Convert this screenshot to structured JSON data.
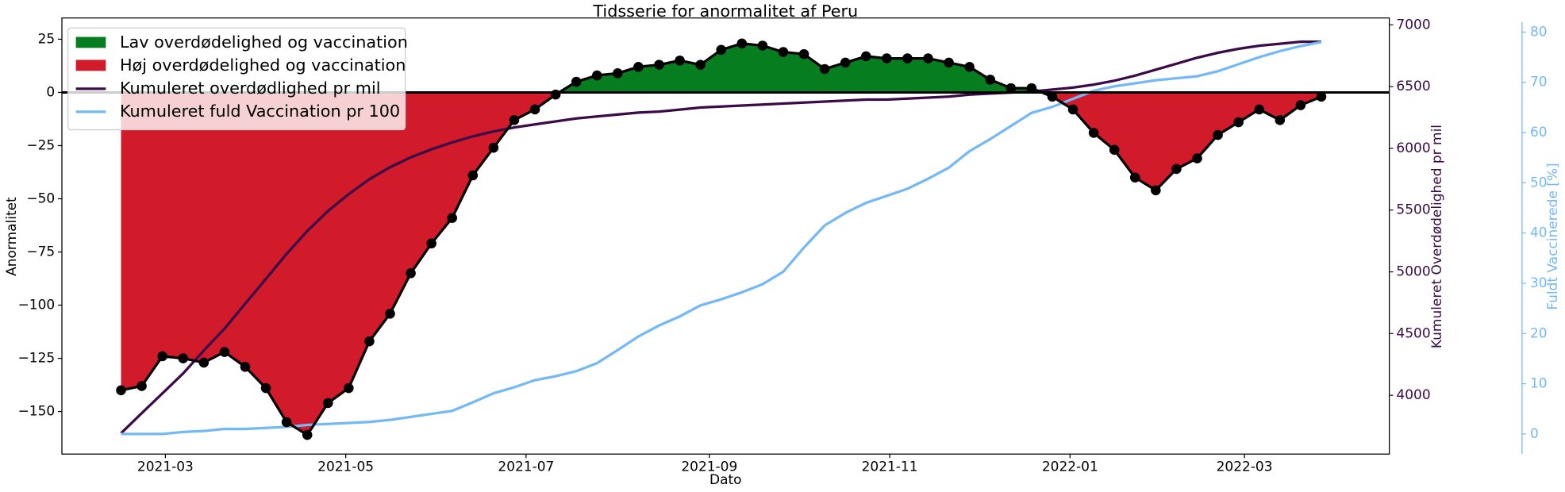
{
  "chart_data": {
    "type": "line",
    "title": "Tidsserie for anormalitet af Peru",
    "xlabel": "Dato",
    "ylabel": "Anormalitet",
    "y2label": "Kumuleret Overdødelighed pr mil",
    "y3label": "Fuldt Vaccinerede [%]",
    "legend": "upper left",
    "x": [
      "2021-02-14",
      "2021-02-21",
      "2021-02-28",
      "2021-03-07",
      "2021-03-14",
      "2021-03-21",
      "2021-03-28",
      "2021-04-04",
      "2021-04-11",
      "2021-04-18",
      "2021-04-25",
      "2021-05-02",
      "2021-05-09",
      "2021-05-16",
      "2021-05-23",
      "2021-05-30",
      "2021-06-06",
      "2021-06-13",
      "2021-06-20",
      "2021-06-27",
      "2021-07-04",
      "2021-07-11",
      "2021-07-18",
      "2021-07-25",
      "2021-08-01",
      "2021-08-08",
      "2021-08-15",
      "2021-08-22",
      "2021-08-29",
      "2021-09-05",
      "2021-09-12",
      "2021-09-19",
      "2021-09-26",
      "2021-10-03",
      "2021-10-10",
      "2021-10-17",
      "2021-10-24",
      "2021-10-31",
      "2021-11-07",
      "2021-11-14",
      "2021-11-21",
      "2021-11-28",
      "2021-12-05",
      "2021-12-12",
      "2021-12-19",
      "2021-12-26",
      "2022-01-02",
      "2022-01-09",
      "2022-01-16",
      "2022-01-23",
      "2022-01-30",
      "2022-02-06",
      "2022-02-13",
      "2022-02-20",
      "2022-02-27",
      "2022-03-06",
      "2022-03-13",
      "2022-03-20",
      "2022-03-27"
    ],
    "anomaly": {
      "color": "#000000",
      "values": [
        -140,
        -138,
        -124,
        -125,
        -127,
        -122,
        -129,
        -139,
        -155,
        -161,
        -146,
        -139,
        -117,
        -104,
        -85,
        -71,
        -59,
        -39,
        -26,
        -13,
        -8,
        -1,
        5,
        8,
        9,
        12,
        13,
        15,
        13,
        20,
        23,
        22,
        19,
        18,
        11,
        14,
        17,
        16,
        16,
        16,
        14,
        12,
        6,
        2,
        2,
        -2,
        -8,
        -19,
        -27,
        -40,
        -46,
        -36,
        -31,
        -20,
        -14,
        -8,
        -13,
        -6,
        -2
      ]
    },
    "fills": [
      {
        "name": "Lav overdødelighed og vaccination",
        "color": "#067d1e"
      },
      {
        "name": "Høj overdødelighed og vaccination",
        "color": "#d11a2a"
      }
    ],
    "series": [
      {
        "name": "Kumuleret overdødlighed pr mil",
        "color": "#3a0b47",
        "axis": "y2",
        "values": [
          3693,
          3855,
          4016,
          4177,
          4363,
          4540,
          4742,
          4943,
          5145,
          5331,
          5492,
          5629,
          5750,
          5847,
          5927,
          5992,
          6048,
          6097,
          6137,
          6169,
          6194,
          6218,
          6242,
          6258,
          6274,
          6290,
          6298,
          6314,
          6331,
          6339,
          6347,
          6355,
          6363,
          6371,
          6379,
          6387,
          6395,
          6395,
          6403,
          6411,
          6419,
          6435,
          6444,
          6452,
          6460,
          6476,
          6492,
          6516,
          6548,
          6589,
          6637,
          6685,
          6734,
          6774,
          6806,
          6831,
          6847,
          6863,
          6863
        ]
      },
      {
        "name": "Kumuleret fuld Vaccination pr 100",
        "color": "#74b9f5",
        "axis": "y3",
        "values": [
          0,
          0,
          0,
          0.4,
          0.6,
          1.0,
          1.0,
          1.2,
          1.4,
          1.8,
          2.0,
          2.2,
          2.4,
          2.8,
          3.4,
          4.0,
          4.6,
          6.3,
          8.1,
          9.3,
          10.7,
          11.5,
          12.5,
          14.1,
          16.7,
          19.4,
          21.6,
          23.4,
          25.6,
          26.8,
          28.2,
          29.8,
          32.3,
          37.1,
          41.5,
          44.0,
          46.0,
          47.4,
          48.8,
          50.8,
          53.0,
          56.3,
          58.7,
          61.3,
          63.9,
          65.1,
          66.7,
          68.3,
          69.2,
          69.8,
          70.4,
          70.8,
          71.2,
          72.2,
          73.6,
          75.0,
          76.2,
          77.2,
          78.0
        ]
      }
    ],
    "xlim": [
      "2021-01-25",
      "2022-04-19"
    ],
    "xticks": [
      {
        "value": "2021-03-01",
        "label": "2021-03"
      },
      {
        "value": "2021-05-01",
        "label": "2021-05"
      },
      {
        "value": "2021-07-01",
        "label": "2021-07"
      },
      {
        "value": "2021-09-01",
        "label": "2021-09"
      },
      {
        "value": "2021-11-01",
        "label": "2021-11"
      },
      {
        "value": "2022-01-01",
        "label": "2022-01"
      },
      {
        "value": "2022-03-01",
        "label": "2022-03"
      }
    ],
    "ylim": [
      -170,
      35
    ],
    "yticks": [
      {
        "value": -150,
        "label": "−150"
      },
      {
        "value": -125,
        "label": "−125"
      },
      {
        "value": -100,
        "label": "−100"
      },
      {
        "value": -75,
        "label": "−75"
      },
      {
        "value": -50,
        "label": "−50"
      },
      {
        "value": -25,
        "label": "−25"
      },
      0,
      25
    ],
    "y2lim": [
      3524,
      7056
    ],
    "y2ticks": [
      4000,
      4500,
      5000,
      5500,
      6000,
      6500,
      7000
    ],
    "y3lim": [
      -4,
      82.8
    ],
    "y3ticks": [
      0,
      10,
      20,
      30,
      40,
      50,
      60,
      70,
      80
    ]
  }
}
